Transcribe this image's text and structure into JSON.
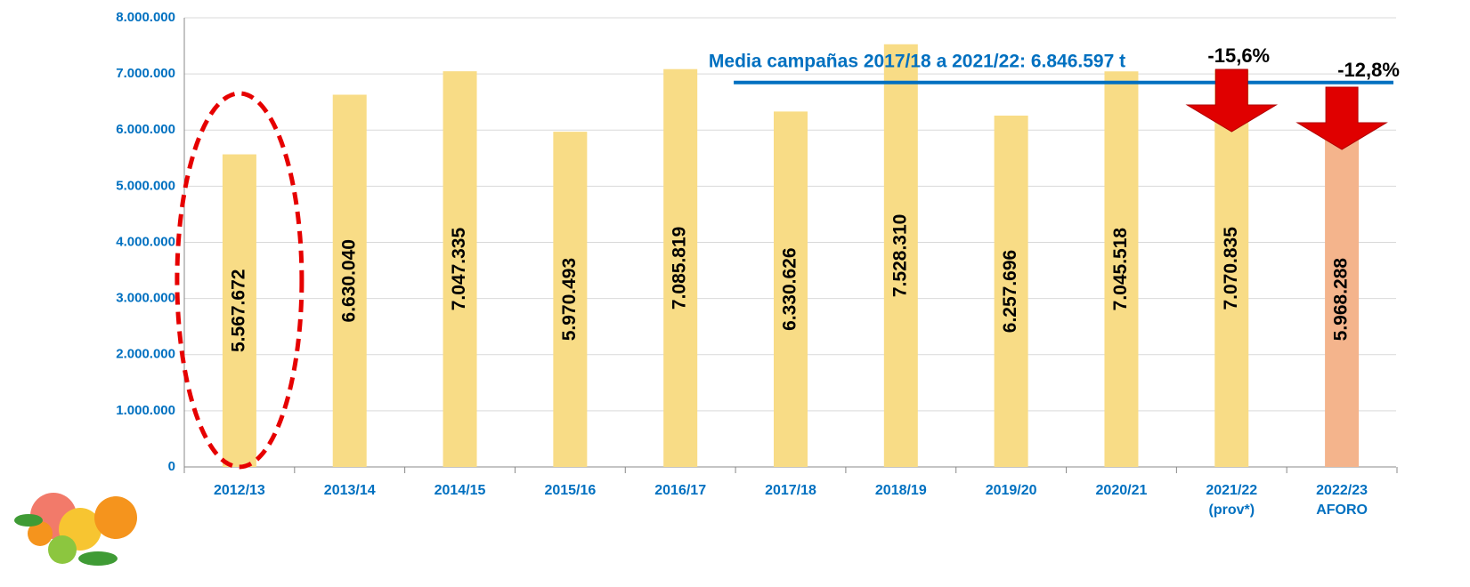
{
  "chart_data": {
    "type": "bar",
    "categories": [
      "2012/13",
      "2013/14",
      "2014/15",
      "2015/16",
      "2016/17",
      "2017/18",
      "2018/19",
      "2019/20",
      "2020/21",
      "2021/22 (prov*)",
      "2022/23 AFORO"
    ],
    "values": [
      5567672,
      6630040,
      7047335,
      5970493,
      7085819,
      6330626,
      7528310,
      6257696,
      7045518,
      7070835,
      5968288
    ],
    "value_labels": [
      "5.567.672",
      "6.630.040",
      "7.047.335",
      "5.970.493",
      "7.085.819",
      "6.330.626",
      "7.528.310",
      "6.257.696",
      "7.045.518",
      "7.070.835",
      "5.968.288"
    ],
    "colors": [
      "#f8dc86",
      "#f8dc86",
      "#f8dc86",
      "#f8dc86",
      "#f8dc86",
      "#f8dc86",
      "#f8dc86",
      "#f8dc86",
      "#f8dc86",
      "#f8dc86",
      "#f4b48c"
    ],
    "ylim": [
      0,
      8000000
    ],
    "yticks": [
      {
        "value": 0,
        "label": "0"
      },
      {
        "value": 1000000,
        "label": "1.000.000"
      },
      {
        "value": 2000000,
        "label": "2.000.000"
      },
      {
        "value": 3000000,
        "label": "3.000.000"
      },
      {
        "value": 4000000,
        "label": "4.000.000"
      },
      {
        "value": 5000000,
        "label": "5.000.000"
      },
      {
        "value": 6000000,
        "label": "6.000.000"
      },
      {
        "value": 7000000,
        "label": "7.000.000"
      },
      {
        "value": 8000000,
        "label": "8.000.000"
      }
    ],
    "grid": true,
    "mean_line": {
      "value": 6846597,
      "label": "Media campañas 2017/18 a 2021/22: 6.846.597 t",
      "color": "#0070c0"
    },
    "annotations": [
      "-15,6%",
      "-12,8%"
    ]
  }
}
